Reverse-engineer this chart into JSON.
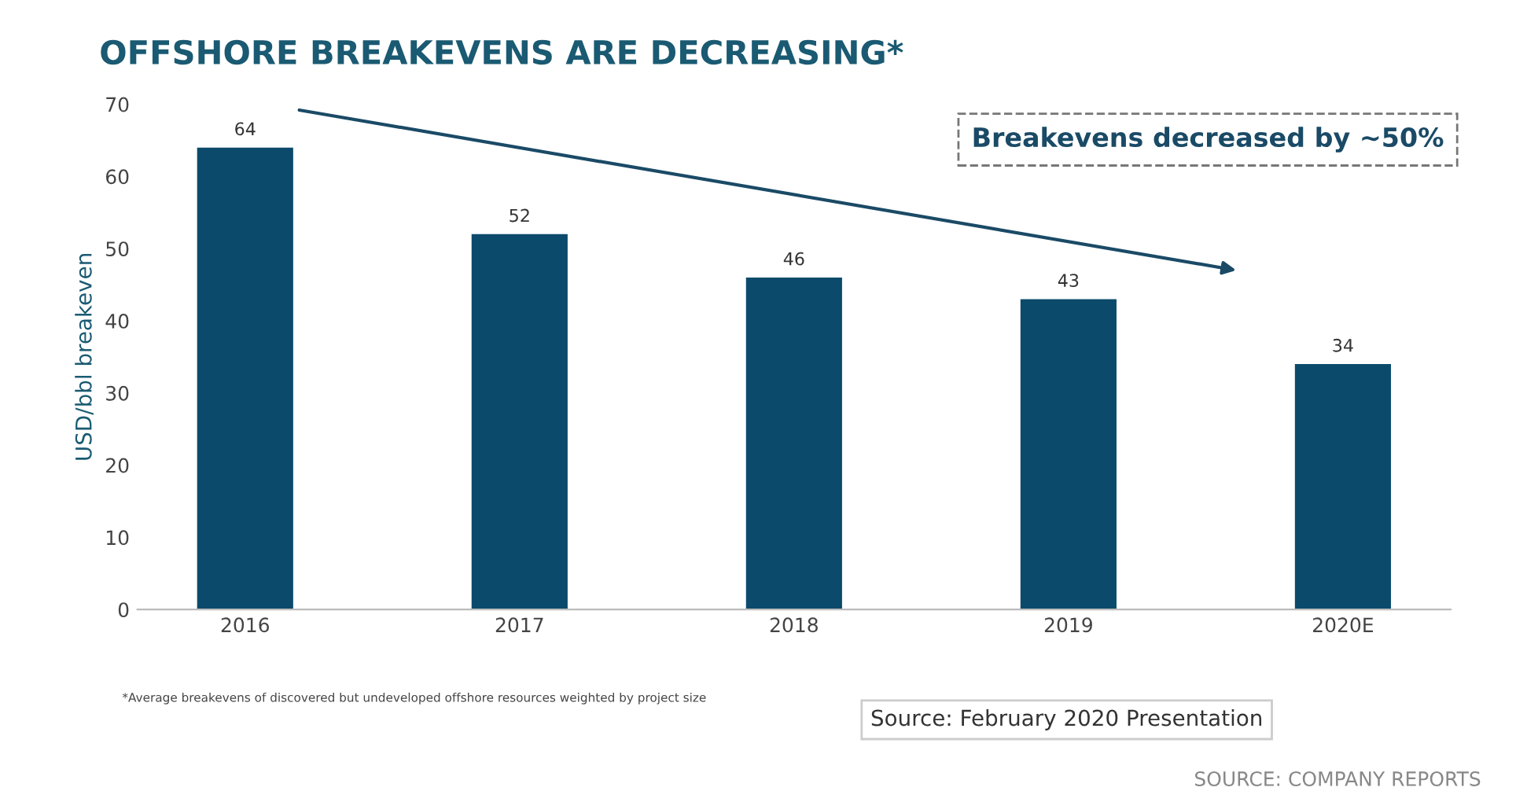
{
  "chart_data": {
    "type": "bar",
    "title": "OFFSHORE BREAKEVENS ARE DECREASING*",
    "ylabel": "USD/bbl breakeven",
    "categories": [
      "2016",
      "2017",
      "2018",
      "2019",
      "2020E"
    ],
    "values": [
      64,
      52,
      46,
      43,
      34
    ],
    "color": "#0b4a6b",
    "ylim": [
      0,
      70
    ],
    "yticks": [
      0,
      10,
      20,
      30,
      40,
      50,
      60,
      70
    ],
    "grid": false,
    "data_labels": true,
    "annotations": [
      "Breakevens decreased by ~50%",
      "*Average breakevens of discovered but undeveloped offshore resources weighted by project size",
      "Source: February 2020 Presentation",
      "SOURCE: COMPANY REPORTS"
    ]
  }
}
